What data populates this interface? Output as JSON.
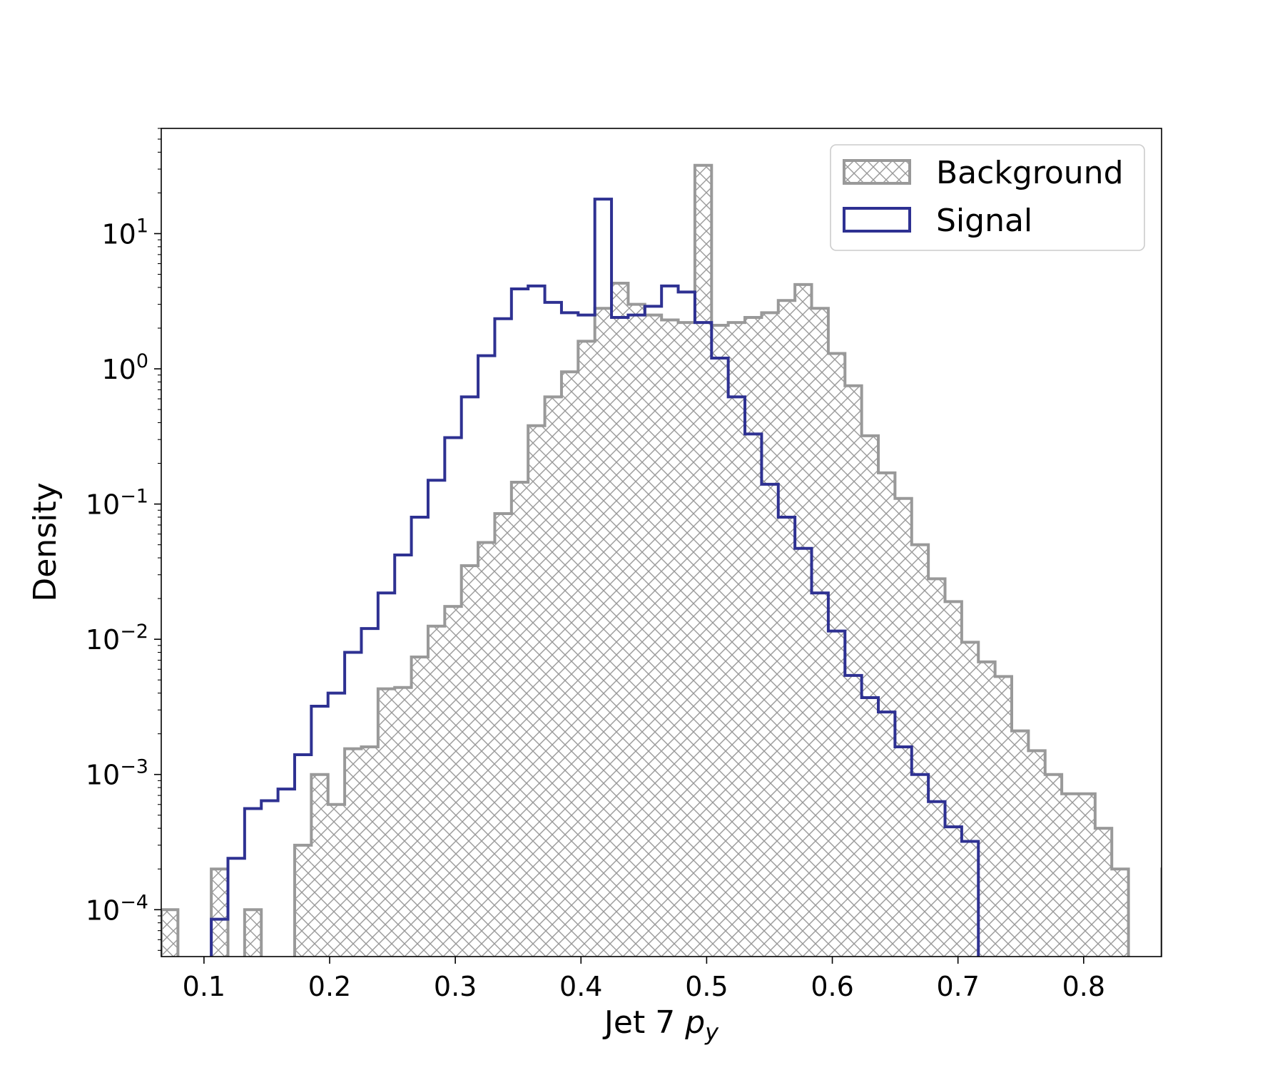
{
  "chart_data": {
    "type": "histogram",
    "xlabel": "Jet 7",
    "xlabel_math_base": "p",
    "xlabel_math_sub": "y",
    "ylabel": "Density",
    "yscale": "log",
    "xlim": [
      0.066,
      0.862
    ],
    "ylim": [
      4.5e-05,
      60
    ],
    "x_ticks": [
      {
        "value": 0.1,
        "label": "0.1"
      },
      {
        "value": 0.2,
        "label": "0.2"
      },
      {
        "value": 0.3,
        "label": "0.3"
      },
      {
        "value": 0.4,
        "label": "0.4"
      },
      {
        "value": 0.5,
        "label": "0.5"
      },
      {
        "value": 0.6,
        "label": "0.6"
      },
      {
        "value": 0.7,
        "label": "0.7"
      },
      {
        "value": 0.8,
        "label": "0.8"
      }
    ],
    "y_ticks": [
      {
        "value": 0.0001,
        "base": "10",
        "exp": "−4"
      },
      {
        "value": 0.001,
        "base": "10",
        "exp": "−3"
      },
      {
        "value": 0.01,
        "base": "10",
        "exp": "−2"
      },
      {
        "value": 0.1,
        "base": "10",
        "exp": "−1"
      },
      {
        "value": 1,
        "base": "10",
        "exp": "0"
      },
      {
        "value": 10,
        "base": "10",
        "exp": "1"
      }
    ],
    "legend": {
      "position": "upper right",
      "entries": [
        "Background",
        "Signal"
      ]
    },
    "grid": false,
    "bin_start": 0.066,
    "bin_width": 0.01327,
    "series": [
      {
        "name": "Background",
        "style": "hatched",
        "color": "#999999",
        "values": [
          0.0001,
          0,
          0,
          0.0002,
          0,
          0.0001,
          0,
          0,
          0.0003,
          0.001,
          0.0006,
          0.00155,
          0.0016,
          0.0043,
          0.0044,
          0.0074,
          0.0125,
          0.0175,
          0.035,
          0.052,
          0.085,
          0.145,
          0.38,
          0.62,
          0.95,
          1.6,
          2.8,
          4.3,
          3.0,
          2.5,
          2.3,
          2.2,
          32,
          2.1,
          2.2,
          2.4,
          2.6,
          3.2,
          4.2,
          2.8,
          1.3,
          0.75,
          0.32,
          0.17,
          0.11,
          0.05,
          0.028,
          0.019,
          0.0095,
          0.0068,
          0.0053,
          0.0021,
          0.0015,
          0.001,
          0.00072,
          0.00072,
          0.0004,
          0.0002,
          0,
          0,
          0.0002
        ]
      },
      {
        "name": "Signal",
        "style": "step",
        "color": "#2e3192",
        "values": [
          0,
          0,
          0,
          8.5e-05,
          0.00024,
          0.00056,
          0.00064,
          0.00078,
          0.0014,
          0.0032,
          0.004,
          0.008,
          0.012,
          0.022,
          0.042,
          0.08,
          0.15,
          0.31,
          0.62,
          1.25,
          2.35,
          3.9,
          4.1,
          3.1,
          2.6,
          2.5,
          18,
          2.4,
          2.5,
          2.9,
          4.1,
          3.7,
          2.2,
          1.2,
          0.62,
          0.33,
          0.14,
          0.08,
          0.047,
          0.022,
          0.0115,
          0.0054,
          0.0037,
          0.0029,
          0.0016,
          0.001,
          0.00063,
          0.00041,
          0.00032
        ]
      }
    ]
  }
}
